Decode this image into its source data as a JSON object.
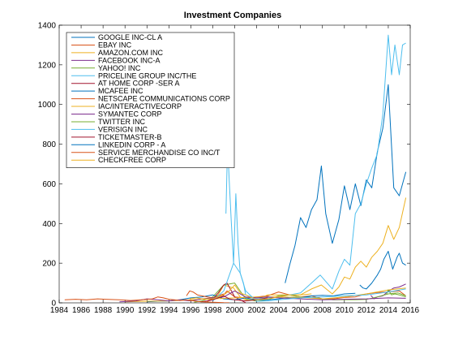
{
  "chart_data": {
    "type": "line",
    "title": "Investment Companies",
    "xlabel": "",
    "ylabel": "",
    "xlim": [
      1984,
      2016
    ],
    "ylim": [
      0,
      1400
    ],
    "xticks": [
      1984,
      1986,
      1988,
      1990,
      1992,
      1994,
      1996,
      1998,
      2000,
      2002,
      2004,
      2006,
      2008,
      2010,
      2012,
      2014,
      2016
    ],
    "yticks": [
      0,
      200,
      400,
      600,
      800,
      1000,
      1200,
      1400
    ],
    "xtick_labels": [
      "1984",
      "1986",
      "1988",
      "1990",
      "1992",
      "1994",
      "1996",
      "1998",
      "2000",
      "2002",
      "2004",
      "2006",
      "2008",
      "2010",
      "2012",
      "2014",
      "2016"
    ],
    "ytick_labels": [
      "0",
      "200",
      "400",
      "600",
      "800",
      "1000",
      "1200",
      "1400"
    ],
    "legend_position": "top-left",
    "series": [
      {
        "name": "GOOGLE INC-CL A",
        "color": "#0072bd",
        "x": [
          2004.6,
          2005.0,
          2005.5,
          2006.0,
          2006.5,
          2007.0,
          2007.5,
          2007.9,
          2008.3,
          2008.9,
          2009.5,
          2010.0,
          2010.5,
          2011.0,
          2011.5,
          2012.0,
          2012.5,
          2013.0,
          2013.5,
          2014.0,
          2014.5,
          2015.0,
          2015.6
        ],
        "y": [
          100,
          190,
          290,
          430,
          380,
          470,
          520,
          690,
          450,
          300,
          420,
          590,
          470,
          600,
          490,
          620,
          580,
          760,
          880,
          1100,
          580,
          540,
          660
        ]
      },
      {
        "name": "EBAY INC",
        "color": "#d95319",
        "x": [
          1998.7,
          1999.3,
          2000.0,
          2001.0,
          2002.0,
          2003.0,
          2004.0,
          2005.0,
          2006.0,
          2007.0,
          2008.0,
          2009.0,
          2010.0,
          2011.0,
          2012.0,
          2013.0,
          2014.0,
          2015.0,
          2015.6
        ],
        "y": [
          20,
          60,
          30,
          25,
          30,
          35,
          55,
          40,
          30,
          35,
          20,
          20,
          27,
          30,
          45,
          52,
          55,
          60,
          35
        ]
      },
      {
        "name": "AMAZON.COM INC",
        "color": "#edb120",
        "x": [
          1997.4,
          1998.5,
          1999.0,
          1999.9,
          2000.5,
          2001.0,
          2002.0,
          2003.0,
          2004.0,
          2005.0,
          2006.0,
          2007.0,
          2007.9,
          2008.9,
          2009.5,
          2010.0,
          2010.5,
          2011.0,
          2011.5,
          2012.0,
          2012.5,
          2013.0,
          2013.5,
          2014.0,
          2014.5,
          2015.0,
          2015.6
        ],
        "y": [
          2,
          40,
          90,
          75,
          30,
          15,
          15,
          40,
          40,
          40,
          40,
          70,
          90,
          45,
          80,
          130,
          120,
          180,
          210,
          180,
          230,
          260,
          300,
          390,
          320,
          380,
          530
        ]
      },
      {
        "name": "FACEBOOK INC-A",
        "color": "#7e2f8e",
        "x": [
          2012.4,
          2012.7,
          2013.0,
          2013.5,
          2014.0,
          2014.5,
          2015.0,
          2015.6
        ],
        "y": [
          38,
          20,
          30,
          35,
          58,
          75,
          80,
          95
        ]
      },
      {
        "name": "YAHOO! INC",
        "color": "#77ac30",
        "x": [
          1996.3,
          1997.0,
          1998.0,
          1999.0,
          2000.0,
          2001.0,
          2002.0,
          2003.0,
          2004.0,
          2005.0,
          2006.0,
          2007.0,
          2008.0,
          2009.0,
          2010.0,
          2011.0,
          2012.0,
          2013.0,
          2014.0,
          2014.9,
          2015.6
        ],
        "y": [
          3,
          10,
          30,
          90,
          100,
          20,
          8,
          15,
          35,
          40,
          30,
          28,
          20,
          15,
          16,
          16,
          17,
          30,
          45,
          50,
          35
        ]
      },
      {
        "name": "PRICELINE GROUP INC/THE",
        "color": "#4dbeee",
        "x": [
          1999.2,
          1999.35,
          1999.5,
          1999.7,
          1999.9,
          2000.1,
          2000.3,
          2000.5,
          2000.8,
          2001.0,
          2002.0,
          2003.0,
          2004.0,
          2005.0,
          2006.0,
          2007.0,
          2007.8,
          2008.9,
          2009.5,
          2010.0,
          2010.5,
          2011.0,
          2011.5,
          2012.0,
          2012.5,
          2013.0,
          2013.5,
          2014.0,
          2014.3,
          2014.6,
          2015.0,
          2015.3,
          2015.6
        ],
        "y": [
          450,
          800,
          620,
          400,
          200,
          550,
          300,
          150,
          100,
          40,
          20,
          25,
          30,
          40,
          50,
          100,
          140,
          70,
          160,
          220,
          190,
          450,
          500,
          600,
          680,
          750,
          950,
          1350,
          1150,
          1300,
          1150,
          1300,
          1310
        ]
      },
      {
        "name": "AT HOME CORP -SER A",
        "color": "#a2142f",
        "x": [
          1997.5,
          1998.0,
          1998.5,
          1999.0,
          1999.3,
          1999.7,
          2000.0,
          2000.5,
          2001.0
        ],
        "y": [
          10,
          20,
          50,
          90,
          100,
          60,
          30,
          15,
          1
        ]
      },
      {
        "name": "MCAFEE INC",
        "color": "#0072bd",
        "x": [
          1992.0,
          1993.0,
          1994.0,
          1995.0,
          1996.0,
          1997.0,
          1998.0,
          1999.0,
          2000.0,
          2001.0,
          2002.0,
          2003.0,
          2004.0,
          2005.0,
          2006.0,
          2007.0,
          2008.0,
          2009.0,
          2010.0,
          2011.0
        ],
        "y": [
          5,
          8,
          10,
          15,
          25,
          30,
          40,
          20,
          15,
          25,
          15,
          15,
          20,
          28,
          25,
          35,
          38,
          35,
          45,
          48
        ]
      },
      {
        "name": "NETSCAPE COMMUNICATIONS CORP",
        "color": "#d95319",
        "x": [
          1995.6,
          1995.9,
          1996.2,
          1996.6,
          1997.0,
          1997.5,
          1998.0,
          1998.5,
          1999.0
        ],
        "y": [
          35,
          60,
          55,
          40,
          35,
          30,
          25,
          35,
          45
        ]
      },
      {
        "name": "IAC/INTERACTIVECORP",
        "color": "#edb120",
        "x": [
          1990.0,
          1992.0,
          1994.0,
          1996.0,
          1998.0,
          2000.0,
          2002.0,
          2004.0,
          2006.0,
          2008.0,
          2010.0,
          2012.0,
          2014.0,
          2015.6
        ],
        "y": [
          5,
          8,
          10,
          15,
          20,
          25,
          30,
          30,
          28,
          20,
          30,
          45,
          65,
          75
        ]
      },
      {
        "name": "SYMANTEC CORP",
        "color": "#7e2f8e",
        "x": [
          1989.5,
          1991.0,
          1992.0,
          1993.0,
          1994.0,
          1995.0,
          1996.0,
          1997.0,
          1998.0,
          1999.0,
          2000.0,
          2001.0,
          2002.0,
          2003.0,
          2004.0,
          2006.0,
          2008.0,
          2010.0,
          2012.0,
          2014.0,
          2015.6
        ],
        "y": [
          5,
          10,
          20,
          15,
          10,
          15,
          10,
          20,
          25,
          30,
          60,
          30,
          25,
          30,
          25,
          20,
          15,
          18,
          20,
          25,
          23
        ]
      },
      {
        "name": "TWITTER INC",
        "color": "#77ac30",
        "x": [
          2013.85,
          2014.0,
          2014.3,
          2014.6,
          2015.0,
          2015.6
        ],
        "y": [
          45,
          65,
          40,
          45,
          40,
          30
        ]
      },
      {
        "name": "VERISIGN INC",
        "color": "#4dbeee",
        "x": [
          1998.0,
          1999.0,
          1999.9,
          2000.5,
          2001.0,
          2002.0,
          2003.0,
          2004.0,
          2006.0,
          2008.0,
          2010.0,
          2012.0,
          2014.0,
          2015.6
        ],
        "y": [
          10,
          60,
          200,
          150,
          60,
          8,
          10,
          15,
          25,
          30,
          35,
          40,
          55,
          70
        ]
      },
      {
        "name": "TICKETMASTER-B",
        "color": "#a2142f",
        "x": [
          1996.9,
          1997.5,
          1998.0,
          1998.5,
          1999.0,
          1999.5,
          2000.0,
          2001.0,
          2002.0,
          2003.0
        ],
        "y": [
          5,
          10,
          15,
          25,
          35,
          20,
          15,
          10,
          15,
          25
        ]
      },
      {
        "name": "LINKEDIN CORP - A",
        "color": "#0072bd",
        "x": [
          2011.4,
          2011.7,
          2012.0,
          2012.5,
          2013.0,
          2013.3,
          2013.6,
          2014.0,
          2014.4,
          2014.8,
          2015.0,
          2015.3,
          2015.6
        ],
        "y": [
          90,
          75,
          70,
          100,
          140,
          170,
          220,
          260,
          170,
          230,
          250,
          200,
          190
        ]
      },
      {
        "name": "SERVICE MERCHANDISE CO INC/T",
        "color": "#d95319",
        "x": [
          1984.5,
          1985.5,
          1986.5,
          1987.5,
          1988.5,
          1989.5,
          1990.5,
          1991.5,
          1992.5,
          1993.0,
          1993.5,
          1994.0,
          1994.5,
          1995.0,
          1995.5,
          1996.0,
          1996.5,
          1997.0,
          1997.5,
          1998.0,
          1998.5,
          1999.0,
          1999.5
        ],
        "y": [
          15,
          18,
          15,
          20,
          17,
          15,
          12,
          15,
          20,
          30,
          25,
          18,
          15,
          12,
          15,
          12,
          8,
          5,
          4,
          3,
          2,
          1,
          0.5
        ]
      },
      {
        "name": "CHECKFREE CORP",
        "color": "#edb120",
        "x": [
          1995.9,
          1996.5,
          1997.0,
          1998.0,
          1999.0,
          1999.5,
          2000.0,
          2000.5,
          2001.0,
          2002.0,
          2003.0,
          2004.0,
          2005.0,
          2006.0,
          2007.0
        ],
        "y": [
          20,
          25,
          20,
          20,
          40,
          60,
          90,
          50,
          40,
          15,
          20,
          30,
          40,
          40,
          45
        ]
      }
    ]
  }
}
